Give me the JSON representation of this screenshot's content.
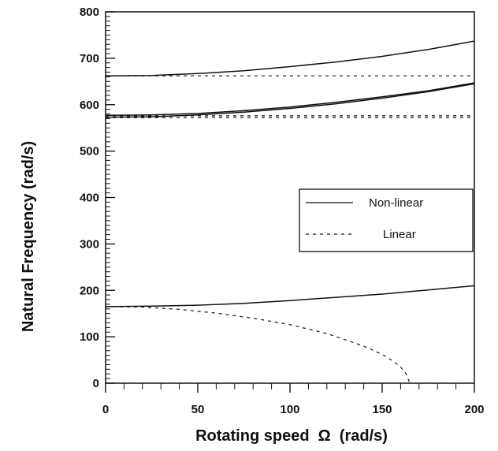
{
  "chart_data": {
    "type": "line",
    "title": "",
    "xlabel": "Rotating speed  Ω  (rad/s)",
    "ylabel": "Natural Frequency (rad/s)",
    "xlim": [
      0,
      200
    ],
    "ylim": [
      0,
      800
    ],
    "xticks": [
      0,
      50,
      100,
      150,
      200
    ],
    "yticks": [
      0,
      100,
      200,
      300,
      400,
      500,
      600,
      700,
      800
    ],
    "xtick_labels": [
      "0",
      "50",
      "100",
      "150",
      "200"
    ],
    "ytick_labels": [
      "0",
      "100",
      "200",
      "300",
      "400",
      "500",
      "600",
      "700",
      "800"
    ],
    "grid": false,
    "legend_placement": "center-right",
    "legend": [
      {
        "label": "Non-linear",
        "style": "solid"
      },
      {
        "label": "Linear",
        "style": "dashed"
      }
    ],
    "series": [
      {
        "style": "solid",
        "x": [
          0,
          25,
          50,
          75,
          100,
          125,
          150,
          175,
          200
        ],
        "y": [
          662,
          663,
          667,
          673,
          682,
          692,
          704,
          719,
          737
        ]
      },
      {
        "style": "dashed",
        "x": [
          0,
          25,
          50,
          75,
          100,
          125,
          150,
          175,
          200
        ],
        "y": [
          662,
          662,
          662,
          662,
          662,
          662,
          662,
          662,
          662
        ]
      },
      {
        "style": "solid",
        "x": [
          0,
          25,
          50,
          75,
          100,
          125,
          150,
          175,
          200
        ],
        "y": [
          577,
          578,
          581,
          587,
          595,
          605,
          617,
          630,
          647
        ]
      },
      {
        "style": "solid",
        "x": [
          0,
          25,
          50,
          75,
          100,
          125,
          150,
          175,
          200
        ],
        "y": [
          573,
          574,
          578,
          584,
          592,
          602,
          614,
          628,
          645
        ]
      },
      {
        "style": "dashed",
        "x": [
          0,
          25,
          50,
          75,
          100,
          125,
          150,
          175,
          200
        ],
        "y": [
          576,
          576,
          576,
          576,
          576,
          576,
          576,
          576,
          576
        ]
      },
      {
        "style": "dashed",
        "x": [
          0,
          25,
          50,
          75,
          100,
          125,
          150,
          175,
          200
        ],
        "y": [
          572,
          572,
          572,
          572,
          572,
          572,
          572,
          572,
          572
        ]
      },
      {
        "style": "solid",
        "x": [
          0,
          25,
          50,
          75,
          100,
          125,
          150,
          175,
          200
        ],
        "y": [
          165,
          166,
          168,
          172,
          178,
          185,
          192,
          201,
          210
        ]
      },
      {
        "style": "dashed",
        "x": [
          0,
          20,
          40,
          60,
          80,
          100,
          120,
          140,
          150,
          155,
          160,
          163,
          165
        ],
        "y": [
          165,
          164,
          159,
          151,
          140,
          126,
          107,
          80,
          62,
          50,
          35,
          20,
          0
        ]
      }
    ]
  }
}
